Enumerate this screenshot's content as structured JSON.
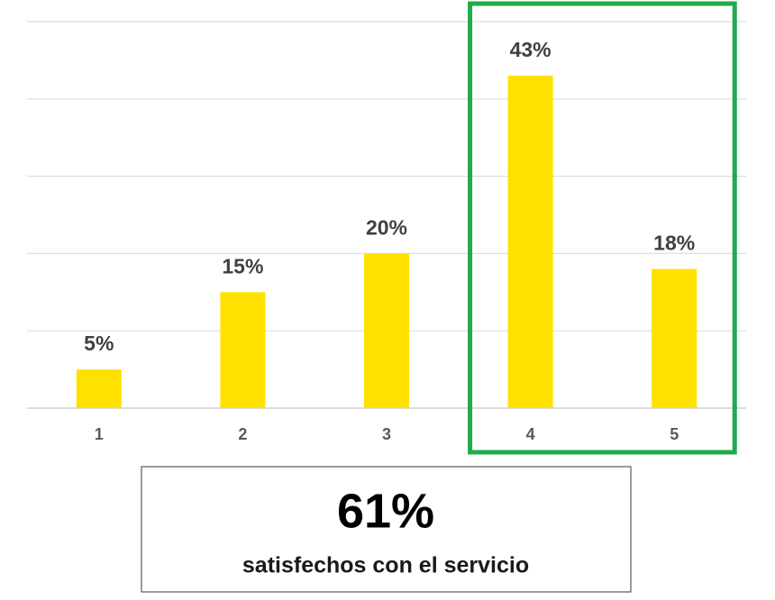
{
  "chart_data": {
    "type": "bar",
    "categories": [
      "1",
      "2",
      "3",
      "4",
      "5"
    ],
    "values": [
      5,
      15,
      20,
      43,
      18
    ],
    "value_labels": [
      "5%",
      "15%",
      "20%",
      "43%",
      "18%"
    ],
    "color": "#ffe100",
    "ylim": [
      0,
      50
    ],
    "yticks": [
      0,
      10,
      20,
      30,
      40,
      50
    ],
    "grid": true,
    "highlight": {
      "categories": [
        "4",
        "5"
      ],
      "color": "#1fab4b"
    },
    "annotation": {
      "headline": "61%",
      "text": "satisfechos con el servicio"
    }
  }
}
